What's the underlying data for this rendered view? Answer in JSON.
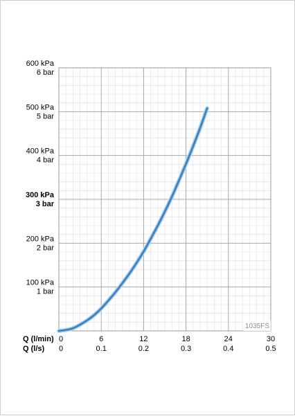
{
  "chart_data": {
    "type": "line",
    "title": "",
    "code_label": "1035FS",
    "y_range": [
      0,
      600
    ],
    "x_range": [
      0,
      30
    ],
    "x_ticks": [
      {
        "value": 0,
        "lmin": "0",
        "ls": "0"
      },
      {
        "value": 6,
        "lmin": "6",
        "ls": "0.1"
      },
      {
        "value": 12,
        "lmin": "12",
        "ls": "0.2"
      },
      {
        "value": 18,
        "lmin": "18",
        "ls": "0.3"
      },
      {
        "value": 24,
        "lmin": "24",
        "ls": "0.4"
      },
      {
        "value": 30,
        "lmin": "30",
        "ls": "0.5"
      }
    ],
    "x_axis_labels": {
      "primary": "Q (l/min)",
      "secondary": "Q (l/s)"
    },
    "y_ticks": [
      {
        "value": 100,
        "kpa": "100 kPa",
        "bar": "1 bar",
        "bold": false
      },
      {
        "value": 200,
        "kpa": "200 kPa",
        "bar": "2 bar",
        "bold": false
      },
      {
        "value": 300,
        "kpa": "300 kPa",
        "bar": "3 bar",
        "bold": true
      },
      {
        "value": 400,
        "kpa": "400 kPa",
        "bar": "4 bar",
        "bold": false
      },
      {
        "value": 500,
        "kpa": "500 kPa",
        "bar": "5 bar",
        "bold": false
      },
      {
        "value": 600,
        "kpa": "600 kPa",
        "bar": "6 bar",
        "bold": false
      }
    ],
    "series": [
      {
        "color": "#3c86c6",
        "x": [
          0,
          1,
          2,
          3,
          4,
          5,
          6,
          7,
          8,
          9,
          10,
          11,
          12,
          13,
          14,
          15,
          16,
          17,
          18,
          19,
          20,
          21
        ],
        "y": [
          0,
          2,
          6,
          14,
          24,
          36,
          51,
          69,
          88,
          109,
          131,
          155,
          181,
          210,
          240,
          272,
          306,
          343,
          381,
          421,
          463,
          508
        ]
      }
    ],
    "grid": true,
    "minor_grid": true
  }
}
